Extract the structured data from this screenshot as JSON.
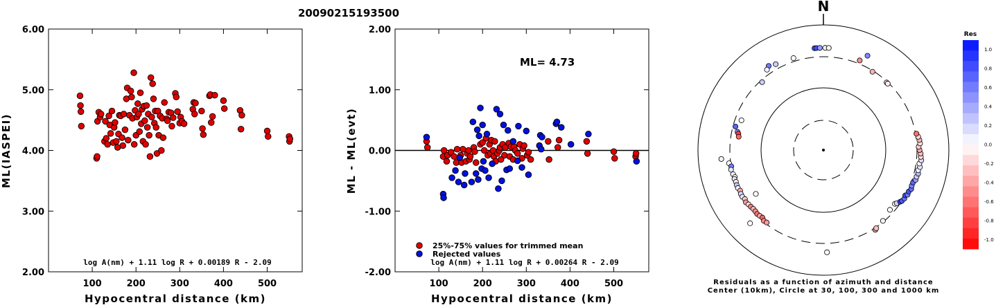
{
  "figure_title": "20090215193500",
  "chart_data": [
    {
      "type": "scatter",
      "xlabel": "Hypocentral distance (km)",
      "ylabel": "ML(IASPEI)",
      "xlim": [
        0,
        580
      ],
      "ylim": [
        2.0,
        6.0
      ],
      "xticks": [
        "100",
        "200",
        "300",
        "400",
        "500"
      ],
      "yticks": [
        "2.00",
        "3.00",
        "4.00",
        "5.00",
        "6.00"
      ],
      "formula": "log A(nm) + 1.11 log R + 0.00189 R - 2.09",
      "marker_color": "#e00000",
      "x": [
        72,
        73,
        74,
        75,
        110,
        111,
        112,
        115,
        118,
        120,
        128,
        130,
        132,
        135,
        138,
        140,
        142,
        145,
        148,
        150,
        152,
        155,
        158,
        160,
        162,
        165,
        168,
        170,
        172,
        175,
        178,
        180,
        182,
        185,
        188,
        190,
        192,
        195,
        196,
        198,
        200,
        202,
        204,
        206,
        208,
        210,
        212,
        214,
        216,
        218,
        220,
        222,
        224,
        226,
        228,
        230,
        232,
        234,
        236,
        238,
        240,
        242,
        244,
        246,
        248,
        250,
        252,
        255,
        258,
        260,
        262,
        265,
        270,
        272,
        275,
        280,
        282,
        285,
        290,
        292,
        295,
        300,
        302,
        305,
        310,
        330,
        332,
        334,
        336,
        350,
        352,
        354,
        368,
        370,
        372,
        375,
        380,
        400,
        402,
        438,
        440,
        442,
        500,
        502,
        550,
        551,
        552
      ],
      "y": [
        4.9,
        4.74,
        4.64,
        4.4,
        3.87,
        3.9,
        4.48,
        4.63,
        4.55,
        4.6,
        4.15,
        4.48,
        4.2,
        4.1,
        4.57,
        4.42,
        4.28,
        4.65,
        4.13,
        4.38,
        4.46,
        4.15,
        4.05,
        4.27,
        4.58,
        4.57,
        4.21,
        4.08,
        4.6,
        4.34,
        4.85,
        5.03,
        4.17,
        4.58,
        4.98,
        4.88,
        4.53,
        5.28,
        4.1,
        4.66,
        4.25,
        4.55,
        4.77,
        4.6,
        4.31,
        4.95,
        4.44,
        4.68,
        4.15,
        4.73,
        4.49,
        4.1,
        4.74,
        4.38,
        4.6,
        4.25,
        3.9,
        5.2,
        4.55,
        5.1,
        4.85,
        4.45,
        4.65,
        4.38,
        3.95,
        4.65,
        4.25,
        4.57,
        4.0,
        4.53,
        4.21,
        4.79,
        4.52,
        4.49,
        4.63,
        4.62,
        4.4,
        4.54,
        4.94,
        4.88,
        4.64,
        4.45,
        4.55,
        4.48,
        4.44,
        4.68,
        4.79,
        4.6,
        4.78,
        4.65,
        4.36,
        4.26,
        4.9,
        4.92,
        4.46,
        4.56,
        4.91,
        4.82,
        4.69,
        4.66,
        4.35,
        4.58,
        4.32,
        4.23,
        4.23,
        4.15,
        4.19
      ]
    },
    {
      "type": "scatter",
      "xlabel": "Hypocentral distance (km)",
      "ylabel": "ML - ML(evt)",
      "xlim": [
        0,
        580
      ],
      "ylim": [
        -2.0,
        2.0
      ],
      "xticks": [
        "100",
        "200",
        "300",
        "400",
        "500"
      ],
      "yticks": [
        "-2.00",
        "-1.00",
        "0.00",
        "1.00",
        "2.00"
      ],
      "ml_text": "ML=  4.73",
      "formula": "log A(nm) + 1.11 log R + 0.00264 R - 2.09",
      "legend": [
        {
          "label": "25%-75% values for trimmed mean",
          "color": "#e00000"
        },
        {
          "label": "Rejected values",
          "color": "#0010e0"
        }
      ],
      "series": [
        {
          "color": "#e00000",
          "x": [
            72,
            74,
            110,
            112,
            118,
            120,
            128,
            135,
            140,
            142,
            150,
            152,
            155,
            162,
            165,
            168,
            170,
            172,
            180,
            182,
            185,
            195,
            200,
            204,
            208,
            212,
            216,
            218,
            220,
            224,
            226,
            228,
            230,
            234,
            238,
            240,
            242,
            246,
            250,
            252,
            260,
            262,
            265,
            270,
            272,
            275,
            280,
            285,
            290,
            292,
            295,
            302,
            305,
            310,
            350,
            352,
            372,
            375,
            438,
            440,
            500,
            502,
            550,
            551
          ],
          "y": [
            0.15,
            0.05,
            -0.1,
            0.0,
            -0.18,
            -0.08,
            -0.03,
            -0.1,
            -0.2,
            0.02,
            -0.08,
            -0.2,
            0.02,
            -0.18,
            -0.05,
            0.0,
            -0.15,
            -0.1,
            0.05,
            -0.02,
            -0.2,
            0.1,
            0.13,
            0.0,
            0.2,
            -0.08,
            0.1,
            -0.05,
            0.17,
            0.0,
            -0.1,
            0.15,
            -0.18,
            -0.05,
            0.0,
            0.05,
            -0.15,
            0.1,
            -0.08,
            0.05,
            0.12,
            -0.1,
            0.06,
            -0.15,
            0.06,
            0.0,
            -0.05,
            0.1,
            -0.13,
            0.03,
            0.08,
            -0.08,
            -0.03,
            -0.15,
            0.15,
            -0.15,
            0.05,
            0.17,
            0.15,
            -0.05,
            -0.02,
            -0.13,
            -0.1,
            -0.05
          ]
        },
        {
          "color": "#0010e0",
          "x": [
            72,
            110,
            111,
            130,
            138,
            145,
            148,
            158,
            160,
            175,
            178,
            185,
            188,
            190,
            192,
            195,
            198,
            200,
            202,
            206,
            210,
            214,
            222,
            232,
            236,
            240,
            244,
            248,
            255,
            258,
            262,
            270,
            280,
            282,
            290,
            300,
            305,
            330,
            332,
            334,
            336,
            368,
            370,
            380,
            402,
            442,
            552
          ],
          "y": [
            0.22,
            -0.72,
            -0.78,
            -0.45,
            -0.33,
            -0.52,
            -0.12,
            -0.57,
            -0.38,
            -0.52,
            0.47,
            -0.38,
            0.34,
            -0.48,
            0.24,
            0.7,
            -0.3,
            0.42,
            -0.18,
            -0.33,
            0.27,
            -0.45,
            -0.22,
            0.68,
            -0.63,
            0.6,
            -0.5,
            0.42,
            -0.32,
            0.33,
            -0.3,
            0.15,
            -0.17,
            0.4,
            -0.28,
            0.32,
            -0.4,
            0.08,
            0.25,
            0.02,
            0.22,
            0.44,
            0.47,
            0.38,
            0.1,
            0.27,
            -0.18
          ]
        }
      ]
    },
    {
      "type": "scatter",
      "polar": true,
      "north_label": "N",
      "caption_line1": "Residuals as a function of azimuth and distance",
      "caption_line2": "Center (10km), Circle at 30, 100, 300 and 1000 km",
      "colorbar_title": "Res",
      "colorbar_ticks": [
        "1.0",
        "0.8",
        "0.6",
        "0.4",
        "0.2",
        "0.0",
        "-0.2",
        "-0.4",
        "-0.6",
        "-0.8",
        "-1.0"
      ],
      "colorbar_range": [
        -1.0,
        1.0
      ],
      "positive_color": "#0010ff",
      "negative_color": "#ff0000",
      "rings_km": [
        30,
        100,
        300,
        1000
      ],
      "center_km": 10,
      "stations": [
        {
          "az": 355,
          "d": 420,
          "res": 0.7
        },
        {
          "az": 356,
          "d": 420,
          "res": 0.75
        },
        {
          "az": 358,
          "d": 420,
          "res": 0.4
        },
        {
          "az": 1,
          "d": 420,
          "res": 0.05
        },
        {
          "az": 3,
          "d": 420,
          "res": -0.05
        },
        {
          "az": 22,
          "d": 340,
          "res": -0.45
        },
        {
          "az": 32,
          "d": 290,
          "res": -0.3
        },
        {
          "az": 25,
          "d": 450,
          "res": 0.5
        },
        {
          "az": 43,
          "d": 290,
          "res": -0.15
        },
        {
          "az": 44,
          "d": 290,
          "res": -0.05
        },
        {
          "az": 342,
          "d": 340,
          "res": 0.0
        },
        {
          "az": 331,
          "d": 360,
          "res": 0.2
        },
        {
          "az": 327,
          "d": 390,
          "res": 0.55
        },
        {
          "az": 325,
          "d": 360,
          "res": 0.05
        },
        {
          "az": 318,
          "d": 280,
          "res": 0.2
        },
        {
          "az": 290,
          "d": 240,
          "res": 0.0
        },
        {
          "az": 285,
          "d": 275,
          "res": 0.65
        },
        {
          "az": 282,
          "d": 245,
          "res": 0.45
        },
        {
          "az": 281,
          "d": 235,
          "res": -0.75
        },
        {
          "az": 279,
          "d": 228,
          "res": -0.6
        },
        {
          "az": 265,
          "d": 420,
          "res": 0.05
        },
        {
          "az": 262,
          "d": 320,
          "res": 0.0
        },
        {
          "az": 260,
          "d": 300,
          "res": 0.55
        },
        {
          "az": 258,
          "d": 310,
          "res": 0.1
        },
        {
          "az": 255,
          "d": 300,
          "res": 0.05
        },
        {
          "az": 253,
          "d": 290,
          "res": 0.0
        },
        {
          "az": 252,
          "d": 300,
          "res": 0.1
        },
        {
          "az": 250,
          "d": 295,
          "res": -0.1
        },
        {
          "az": 248,
          "d": 300,
          "res": 0.25
        },
        {
          "az": 246,
          "d": 300,
          "res": 0.05
        },
        {
          "az": 244,
          "d": 290,
          "res": -0.35
        },
        {
          "az": 242,
          "d": 300,
          "res": 0.15
        },
        {
          "az": 240,
          "d": 300,
          "res": 0.1
        },
        {
          "az": 238,
          "d": 290,
          "res": -0.2
        },
        {
          "az": 236,
          "d": 300,
          "res": -0.4
        },
        {
          "az": 234,
          "d": 290,
          "res": -0.15
        },
        {
          "az": 232,
          "d": 285,
          "res": -0.5
        },
        {
          "az": 230,
          "d": 280,
          "res": -0.3
        },
        {
          "az": 228,
          "d": 280,
          "res": -0.45
        },
        {
          "az": 226,
          "d": 285,
          "res": -0.55
        },
        {
          "az": 224,
          "d": 280,
          "res": -0.35
        },
        {
          "az": 222,
          "d": 275,
          "res": -0.6
        },
        {
          "az": 220,
          "d": 290,
          "res": -0.45
        },
        {
          "az": 218,
          "d": 285,
          "res": -0.4
        },
        {
          "az": 225,
          "d": 440,
          "res": 0.0
        },
        {
          "az": 237,
          "d": 190,
          "res": 0.0
        },
        {
          "az": 178,
          "d": 420,
          "res": 0.0
        },
        {
          "az": 147,
          "d": 320,
          "res": -0.4
        },
        {
          "az": 146,
          "d": 310,
          "res": -0.25
        },
        {
          "az": 127,
          "d": 260,
          "res": 0.0
        },
        {
          "az": 126,
          "d": 270,
          "res": 0.2
        },
        {
          "az": 124,
          "d": 290,
          "res": 0.8
        },
        {
          "az": 123,
          "d": 300,
          "res": 0.7
        },
        {
          "az": 121,
          "d": 310,
          "res": 0.6
        },
        {
          "az": 119,
          "d": 300,
          "res": 0.75
        },
        {
          "az": 118,
          "d": 320,
          "res": 0.55
        },
        {
          "az": 116,
          "d": 315,
          "res": 0.7
        },
        {
          "az": 114,
          "d": 330,
          "res": 0.6
        },
        {
          "az": 112,
          "d": 320,
          "res": 0.5
        },
        {
          "az": 110,
          "d": 320,
          "res": 0.65
        },
        {
          "az": 108,
          "d": 340,
          "res": 0.4
        },
        {
          "az": 106,
          "d": 340,
          "res": 0.2
        },
        {
          "az": 104,
          "d": 350,
          "res": 0.3
        },
        {
          "az": 102,
          "d": 340,
          "res": 0.05
        },
        {
          "az": 100,
          "d": 355,
          "res": 0.1
        },
        {
          "az": 98,
          "d": 340,
          "res": -0.05
        },
        {
          "az": 96,
          "d": 360,
          "res": 0.15
        },
        {
          "az": 94,
          "d": 350,
          "res": -0.15
        },
        {
          "az": 92,
          "d": 345,
          "res": -0.25
        },
        {
          "az": 90,
          "d": 330,
          "res": -0.35
        },
        {
          "az": 88,
          "d": 320,
          "res": -0.2
        },
        {
          "az": 86,
          "d": 340,
          "res": -0.1
        },
        {
          "az": 84,
          "d": 335,
          "res": -0.3
        },
        {
          "az": 82,
          "d": 325,
          "res": -0.15
        },
        {
          "az": 80,
          "d": 310,
          "res": -0.55
        },
        {
          "az": 132,
          "d": 260,
          "res": 0.0
        },
        {
          "az": 140,
          "d": 290,
          "res": 0.05
        }
      ]
    }
  ]
}
